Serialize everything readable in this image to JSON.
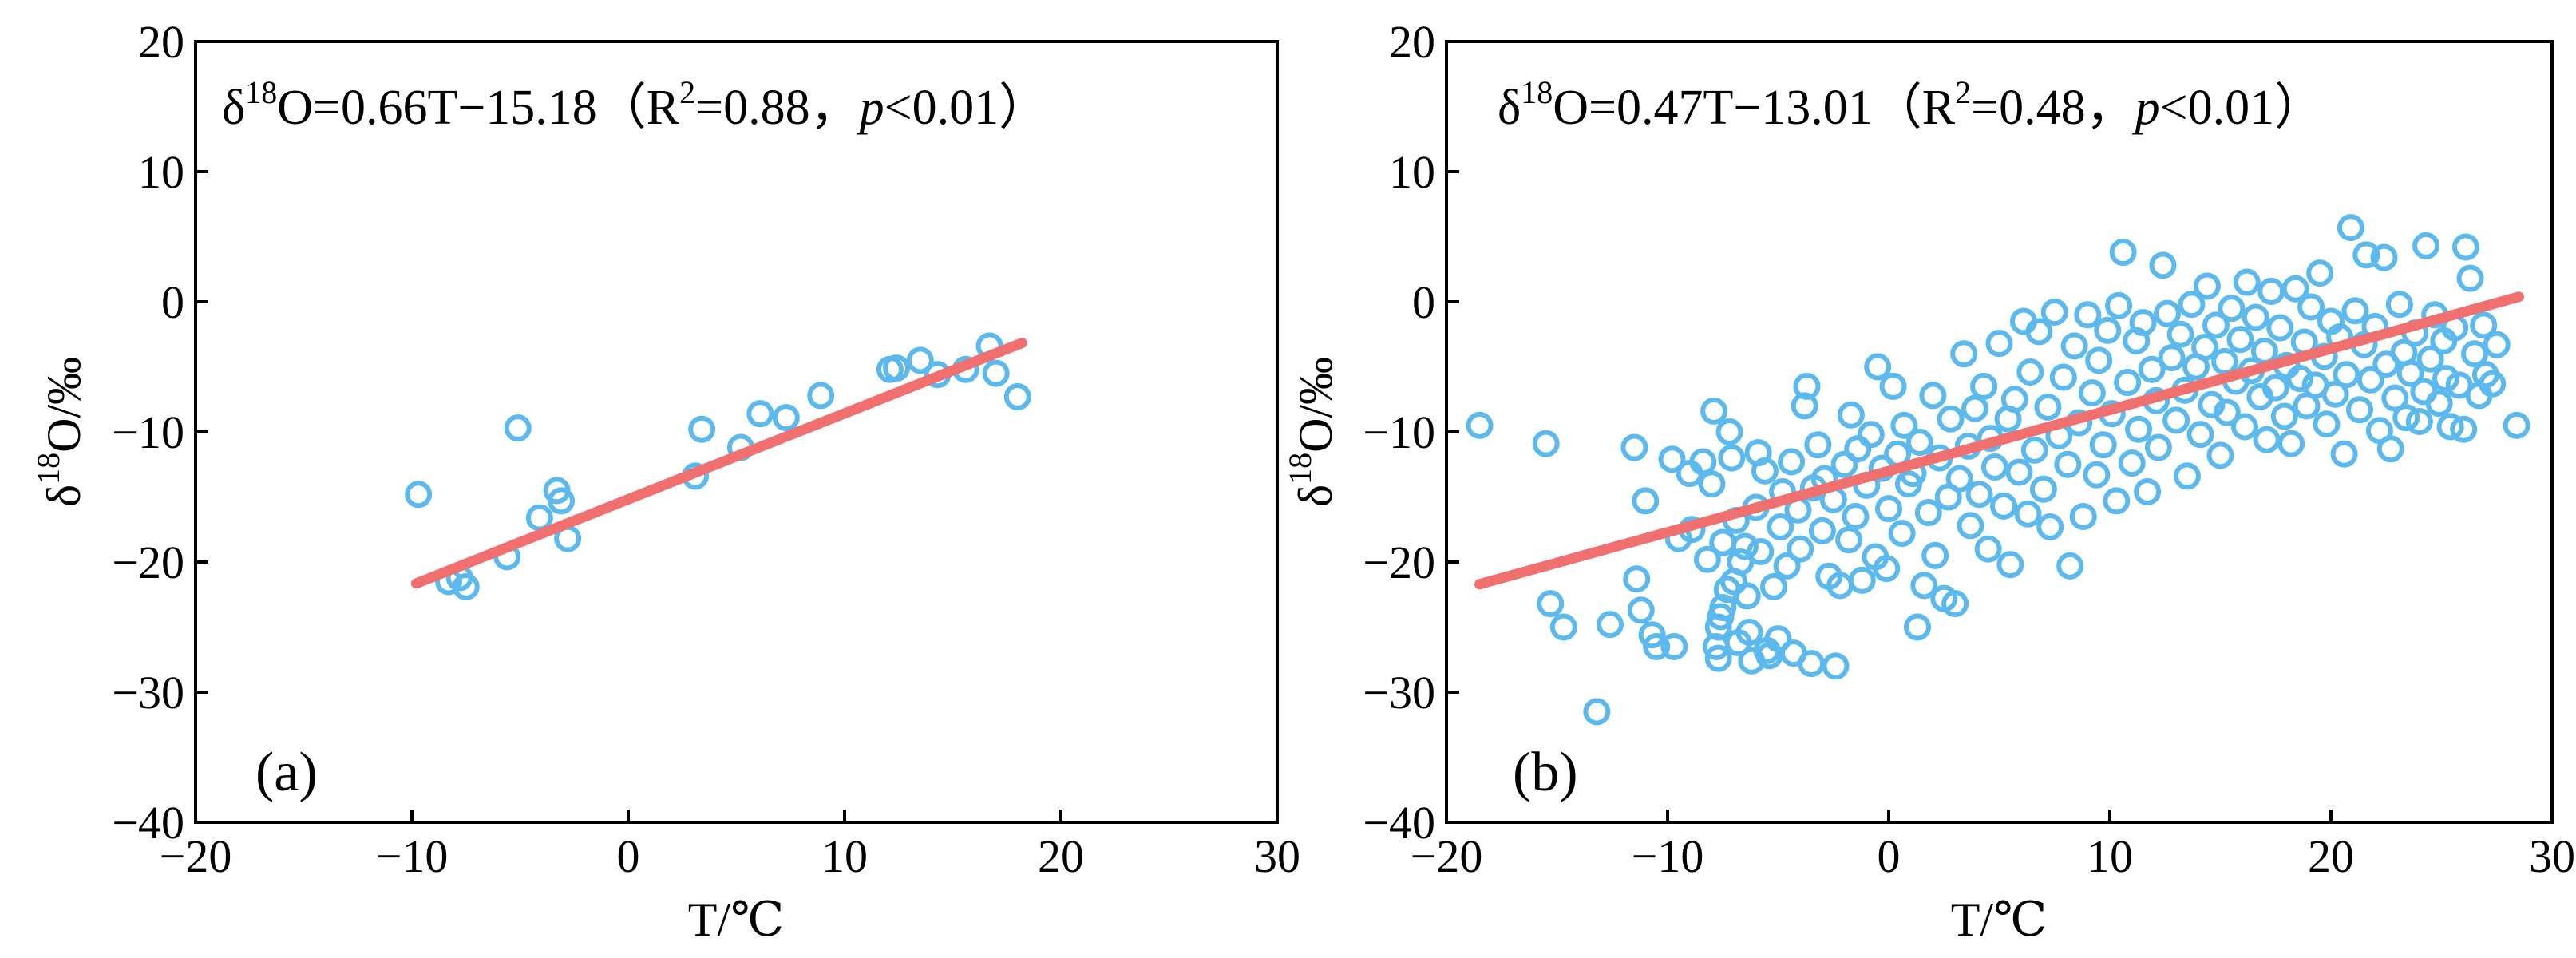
{
  "chart_data": [
    {
      "type": "scatter",
      "panel_label": "(a)",
      "equation": {
        "prefix": "δ",
        "sup1": "18",
        "mid": "O=0.66T−15.18（R",
        "sup2": "2",
        "mid2": "=0.88，",
        "p": "p",
        "suffix": "<0.01）"
      },
      "xlabel": "T/℃",
      "ylabel": {
        "pre": "δ",
        "sup": "18",
        "post": "O/‰"
      },
      "xlim": [
        -20,
        30
      ],
      "ylim": [
        -40,
        20
      ],
      "xticks": [
        -20,
        -10,
        0,
        10,
        20,
        30
      ],
      "yticks": [
        -40,
        -30,
        -20,
        -10,
        0,
        10,
        20
      ],
      "xtick_labels": [
        "−20",
        "−10",
        "0",
        "10",
        "20",
        "30"
      ],
      "ytick_labels": [
        "−40",
        "−30",
        "−20",
        "−10",
        "0",
        "10",
        "20"
      ],
      "point_color": "#5bb9ee",
      "line_color": "#f07070",
      "fit": {
        "slope": 0.66,
        "intercept": -15.18,
        "x_range": [
          -9.8,
          18.2
        ]
      },
      "points": [
        [
          -9.7,
          -14.8
        ],
        [
          -8.3,
          -21.5
        ],
        [
          -7.8,
          -21.2
        ],
        [
          -7.5,
          -21.9
        ],
        [
          -5.6,
          -19.6
        ],
        [
          -5.1,
          -9.7
        ],
        [
          -4.1,
          -16.6
        ],
        [
          -3.3,
          -14.5
        ],
        [
          -3.1,
          -15.3
        ],
        [
          -2.8,
          -18.2
        ],
        [
          3.1,
          -13.4
        ],
        [
          3.4,
          -9.8
        ],
        [
          5.2,
          -11.2
        ],
        [
          6.1,
          -8.6
        ],
        [
          7.3,
          -8.9
        ],
        [
          8.9,
          -7.2
        ],
        [
          12.1,
          -5.2
        ],
        [
          12.4,
          -5.1
        ],
        [
          13.5,
          -4.5
        ],
        [
          14.3,
          -5.6
        ],
        [
          15.6,
          -5.2
        ],
        [
          16.7,
          -3.4
        ],
        [
          17.0,
          -5.5
        ],
        [
          18.0,
          -7.3
        ]
      ]
    },
    {
      "type": "scatter",
      "panel_label": "(b)",
      "equation": {
        "prefix": "δ",
        "sup1": "18",
        "mid": "O=0.47T−13.01（R",
        "sup2": "2",
        "mid2": "=0.48，",
        "p": "p",
        "suffix": "<0.01）"
      },
      "xlabel": "T/℃",
      "ylabel": {
        "pre": "δ",
        "sup": "18",
        "post": "O/‰"
      },
      "xlim": [
        -20,
        30
      ],
      "ylim": [
        -40,
        20
      ],
      "xticks": [
        -20,
        -10,
        0,
        10,
        20,
        30
      ],
      "yticks": [
        -40,
        -30,
        -20,
        -10,
        0,
        10,
        20
      ],
      "xtick_labels": [
        "−20",
        "−10",
        "0",
        "10",
        "20",
        "30"
      ],
      "ytick_labels": [
        "−40",
        "−30",
        "−20",
        "−10",
        "0",
        "10",
        "20"
      ],
      "point_color": "#5bb9ee",
      "line_color": "#f07070",
      "fit": {
        "slope": 0.47,
        "intercept": -13.01,
        "x_range": [
          -18.5,
          28.5
        ]
      },
      "points": [
        [
          -18.5,
          -9.5
        ],
        [
          -15.5,
          -10.9
        ],
        [
          -15.3,
          -23.2
        ],
        [
          -14.7,
          -25.0
        ],
        [
          -13.2,
          -31.5
        ],
        [
          -12.6,
          -24.8
        ],
        [
          -11.5,
          -11.2
        ],
        [
          -11.4,
          -21.3
        ],
        [
          -11.2,
          -23.7
        ],
        [
          -11.0,
          -15.3
        ],
        [
          -10.7,
          -25.6
        ],
        [
          -10.5,
          -26.5
        ],
        [
          -9.8,
          -12.1
        ],
        [
          -9.7,
          -26.5
        ],
        [
          -9.5,
          -18.2
        ],
        [
          -9.0,
          -13.2
        ],
        [
          -8.9,
          -17.5
        ],
        [
          -8.4,
          -12.3
        ],
        [
          -8.2,
          -19.8
        ],
        [
          -8.0,
          -14.0
        ],
        [
          -7.9,
          -8.4
        ],
        [
          -7.8,
          -26.5
        ],
        [
          -7.7,
          -27.4
        ],
        [
          -7.7,
          -25.0
        ],
        [
          -7.6,
          -24.2
        ],
        [
          -7.5,
          -23.5
        ],
        [
          -7.5,
          -18.5
        ],
        [
          -7.3,
          -22.1
        ],
        [
          -7.2,
          -10.0
        ],
        [
          -7.1,
          -12.0
        ],
        [
          -7.0,
          -21.5
        ],
        [
          -6.9,
          -16.8
        ],
        [
          -6.8,
          -26.2
        ],
        [
          -6.7,
          -20.0
        ],
        [
          -6.5,
          -18.8
        ],
        [
          -6.4,
          -22.6
        ],
        [
          -6.3,
          -25.4
        ],
        [
          -6.2,
          -27.6
        ],
        [
          -6.0,
          -15.8
        ],
        [
          -5.9,
          -11.6
        ],
        [
          -5.8,
          -19.2
        ],
        [
          -5.6,
          -13.0
        ],
        [
          -5.5,
          -26.8
        ],
        [
          -5.4,
          -27.2
        ],
        [
          -5.2,
          -21.9
        ],
        [
          -5.0,
          -25.9
        ],
        [
          -4.9,
          -17.3
        ],
        [
          -4.8,
          -14.6
        ],
        [
          -4.6,
          -20.3
        ],
        [
          -4.4,
          -12.3
        ],
        [
          -4.3,
          -27.0
        ],
        [
          -4.1,
          -16.0
        ],
        [
          -4.0,
          -19.0
        ],
        [
          -3.8,
          -8.0
        ],
        [
          -3.7,
          -6.5
        ],
        [
          -3.5,
          -27.8
        ],
        [
          -3.4,
          -14.3
        ],
        [
          -3.2,
          -11.0
        ],
        [
          -3.0,
          -17.6
        ],
        [
          -2.9,
          -13.6
        ],
        [
          -2.7,
          -21.1
        ],
        [
          -2.5,
          -15.2
        ],
        [
          -2.4,
          -28.0
        ],
        [
          -2.2,
          -21.8
        ],
        [
          -2.0,
          -12.5
        ],
        [
          -1.8,
          -18.3
        ],
        [
          -1.7,
          -8.7
        ],
        [
          -1.5,
          -16.5
        ],
        [
          -1.4,
          -11.3
        ],
        [
          -1.2,
          -21.4
        ],
        [
          -1.0,
          -14.1
        ],
        [
          -0.8,
          -10.2
        ],
        [
          -0.6,
          -19.6
        ],
        [
          -0.5,
          -5.0
        ],
        [
          -0.3,
          -12.8
        ],
        [
          -0.1,
          -20.5
        ],
        [
          0.0,
          -15.9
        ],
        [
          0.2,
          -6.5
        ],
        [
          0.4,
          -11.7
        ],
        [
          0.6,
          -17.8
        ],
        [
          0.7,
          -9.5
        ],
        [
          0.9,
          -14.0
        ],
        [
          1.1,
          -13.2
        ],
        [
          1.3,
          -25.0
        ],
        [
          1.4,
          -10.8
        ],
        [
          1.6,
          -21.8
        ],
        [
          1.8,
          -16.2
        ],
        [
          2.0,
          -7.2
        ],
        [
          2.1,
          -19.5
        ],
        [
          2.3,
          -12.0
        ],
        [
          2.5,
          -22.8
        ],
        [
          2.7,
          -15.0
        ],
        [
          2.8,
          -9.0
        ],
        [
          3.0,
          -23.2
        ],
        [
          3.2,
          -13.6
        ],
        [
          3.4,
          -4.0
        ],
        [
          3.6,
          -11.1
        ],
        [
          3.7,
          -17.2
        ],
        [
          3.9,
          -8.2
        ],
        [
          4.1,
          -14.8
        ],
        [
          4.3,
          -6.5
        ],
        [
          4.5,
          -19.0
        ],
        [
          4.6,
          -10.5
        ],
        [
          4.8,
          -12.7
        ],
        [
          5.0,
          -3.2
        ],
        [
          5.2,
          -15.7
        ],
        [
          5.4,
          -9.0
        ],
        [
          5.5,
          -20.2
        ],
        [
          5.7,
          -7.5
        ],
        [
          5.9,
          -13.1
        ],
        [
          6.1,
          -1.5
        ],
        [
          6.3,
          -16.3
        ],
        [
          6.4,
          -5.4
        ],
        [
          6.6,
          -11.4
        ],
        [
          6.8,
          -2.3
        ],
        [
          7.0,
          -14.4
        ],
        [
          7.2,
          -8.1
        ],
        [
          7.3,
          -17.3
        ],
        [
          7.5,
          -0.8
        ],
        [
          7.7,
          -10.3
        ],
        [
          7.9,
          -5.8
        ],
        [
          8.1,
          -12.5
        ],
        [
          8.2,
          -20.3
        ],
        [
          8.4,
          -3.4
        ],
        [
          8.6,
          -9.3
        ],
        [
          8.8,
          -16.5
        ],
        [
          9.0,
          -1.0
        ],
        [
          9.2,
          -7.0
        ],
        [
          9.4,
          -13.3
        ],
        [
          9.5,
          -4.5
        ],
        [
          9.7,
          -11.0
        ],
        [
          9.9,
          -2.2
        ],
        [
          10.1,
          -8.6
        ],
        [
          10.3,
          -15.3
        ],
        [
          10.4,
          -0.3
        ],
        [
          10.6,
          3.8
        ],
        [
          10.8,
          -6.2
        ],
        [
          11.0,
          -12.4
        ],
        [
          11.2,
          -3.0
        ],
        [
          11.3,
          -9.8
        ],
        [
          11.5,
          -1.6
        ],
        [
          11.7,
          -14.6
        ],
        [
          11.9,
          -5.2
        ],
        [
          12.1,
          -7.6
        ],
        [
          12.2,
          -11.2
        ],
        [
          12.4,
          2.8
        ],
        [
          12.6,
          -0.9
        ],
        [
          12.8,
          -4.3
        ],
        [
          13.0,
          -9.1
        ],
        [
          13.2,
          -2.5
        ],
        [
          13.4,
          -6.8
        ],
        [
          13.5,
          -13.4
        ],
        [
          13.7,
          -0.2
        ],
        [
          13.9,
          -5.0
        ],
        [
          14.1,
          -10.2
        ],
        [
          14.3,
          -3.5
        ],
        [
          14.4,
          1.2
        ],
        [
          14.6,
          -7.9
        ],
        [
          14.8,
          -1.8
        ],
        [
          15.0,
          -11.8
        ],
        [
          15.2,
          -4.6
        ],
        [
          15.3,
          -8.5
        ],
        [
          15.5,
          -0.5
        ],
        [
          15.7,
          -6.1
        ],
        [
          15.9,
          -2.9
        ],
        [
          16.1,
          -9.6
        ],
        [
          16.2,
          1.5
        ],
        [
          16.4,
          -5.3
        ],
        [
          16.6,
          -1.2
        ],
        [
          16.8,
          -7.3
        ],
        [
          17.0,
          -3.8
        ],
        [
          17.1,
          -10.6
        ],
        [
          17.3,
          0.8
        ],
        [
          17.5,
          -6.6
        ],
        [
          17.7,
          -2.0
        ],
        [
          17.9,
          -8.8
        ],
        [
          18.0,
          -4.9
        ],
        [
          18.2,
          -10.9
        ],
        [
          18.4,
          1.0
        ],
        [
          18.6,
          -5.9
        ],
        [
          18.8,
          -3.1
        ],
        [
          18.9,
          -8.0
        ],
        [
          19.1,
          -0.4
        ],
        [
          19.3,
          -6.4
        ],
        [
          19.5,
          2.2
        ],
        [
          19.7,
          -4.2
        ],
        [
          19.8,
          -9.4
        ],
        [
          20.0,
          -1.5
        ],
        [
          20.2,
          -7.1
        ],
        [
          20.4,
          -2.7
        ],
        [
          20.6,
          -11.7
        ],
        [
          20.7,
          -5.6
        ],
        [
          20.9,
          5.7
        ],
        [
          21.1,
          -0.7
        ],
        [
          21.3,
          -8.3
        ],
        [
          21.5,
          -3.3
        ],
        [
          21.6,
          3.6
        ],
        [
          21.8,
          -6.0
        ],
        [
          22.0,
          -1.9
        ],
        [
          22.2,
          -9.9
        ],
        [
          22.4,
          3.4
        ],
        [
          22.5,
          -4.8
        ],
        [
          22.7,
          -11.3
        ],
        [
          22.9,
          -7.4
        ],
        [
          23.1,
          -0.2
        ],
        [
          23.3,
          -3.9
        ],
        [
          23.4,
          -8.9
        ],
        [
          23.6,
          -5.5
        ],
        [
          23.8,
          -2.4
        ],
        [
          24.0,
          -9.2
        ],
        [
          24.2,
          -6.9
        ],
        [
          24.3,
          4.3
        ],
        [
          24.5,
          -4.4
        ],
        [
          24.7,
          -1.0
        ],
        [
          24.9,
          -7.8
        ],
        [
          25.1,
          -3.0
        ],
        [
          25.2,
          -5.9
        ],
        [
          25.4,
          -9.6
        ],
        [
          25.6,
          -2.0
        ],
        [
          25.8,
          -6.4
        ],
        [
          26.0,
          -9.8
        ],
        [
          26.1,
          4.2
        ],
        [
          26.3,
          1.8
        ],
        [
          26.5,
          -4.0
        ],
        [
          26.7,
          -7.2
        ],
        [
          26.9,
          -1.8
        ],
        [
          27.0,
          -5.6
        ],
        [
          27.3,
          -6.3
        ],
        [
          27.5,
          -3.3
        ],
        [
          28.4,
          -9.5
        ]
      ]
    }
  ]
}
